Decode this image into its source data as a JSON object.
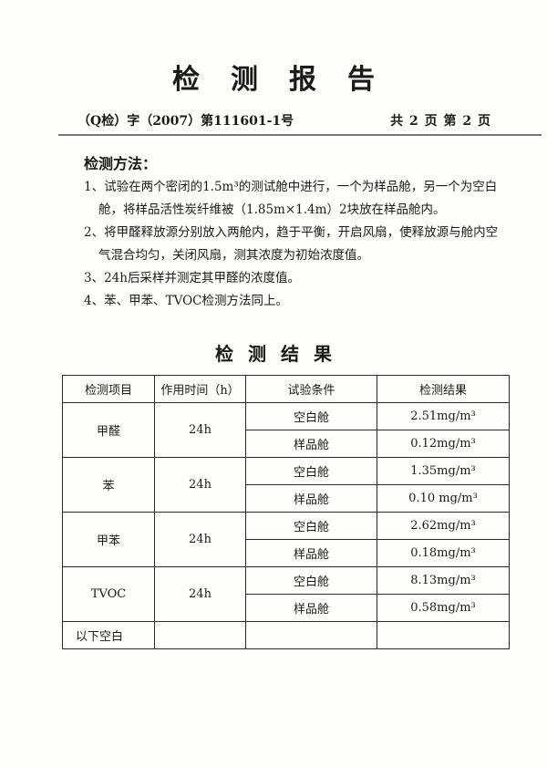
{
  "title": "检测报告",
  "doc_number": "（Q检）字（2007）第111601-1号",
  "page_info": "共 2 页  第 2 页",
  "method": {
    "heading": "检测方法：",
    "lines": [
      "1、试验在两个密闭的1.5m³的测试舱中进行，一个为样品舱，另一个为空白",
      "舱，将样品活性炭纤维被（1.85m×1.4m）2块放在样品舱内。",
      "2、将甲醛释放源分别放入两舱内，趋于平衡，开启风扇，使释放源与舱内空",
      "气混合均匀，关闭风扇，测其浓度为初始浓度值。",
      "3、24h后采样并测定其甲醛的浓度值。",
      "4、苯、甲苯、TVOC检测方法同上。"
    ]
  },
  "results": {
    "heading": "检测结果",
    "headers": [
      "检测项目",
      "作用时间（h）",
      "试验条件",
      "检测结果"
    ],
    "groups": [
      {
        "item": "甲醛",
        "time": "24h",
        "rows": [
          {
            "cond": "空白舱",
            "result": "2.51mg/m³"
          },
          {
            "cond": "样品舱",
            "result": "0.12mg/m³"
          }
        ]
      },
      {
        "item": "苯",
        "time": "24h",
        "rows": [
          {
            "cond": "空白舱",
            "result": "1.35mg/m³"
          },
          {
            "cond": "样品舱",
            "result": "0.10 mg/m³"
          }
        ]
      },
      {
        "item": "甲苯",
        "time": "24h",
        "rows": [
          {
            "cond": "空白舱",
            "result": "2.62mg/m³"
          },
          {
            "cond": "样品舱",
            "result": "0.18mg/m³"
          }
        ]
      },
      {
        "item": "TVOC",
        "time": "24h",
        "rows": [
          {
            "cond": "空白舱",
            "result": "8.13mg/m³"
          },
          {
            "cond": "样品舱",
            "result": "0.58mg/m³"
          }
        ]
      }
    ],
    "footer": "以下空白"
  }
}
